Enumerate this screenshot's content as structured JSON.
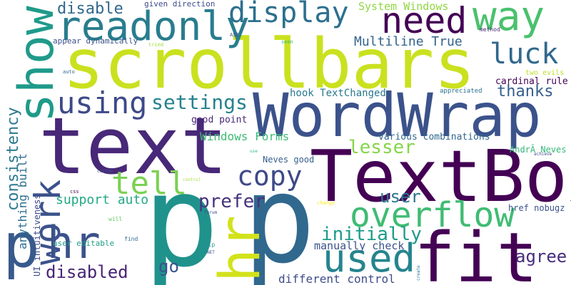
{
  "words": [
    {
      "text": "scrollbars",
      "color": "#cae11f"
    },
    {
      "text": "p",
      "color": "#20928c"
    },
    {
      "text": "p",
      "color": "#31688e"
    },
    {
      "text": "p",
      "color": "#375a8c"
    },
    {
      "text": "TextBox",
      "color": "#440154"
    },
    {
      "text": "text",
      "color": "#482878"
    },
    {
      "text": "WordWrap",
      "color": "#3b528b"
    },
    {
      "text": "fit",
      "color": "#440154"
    },
    {
      "text": "hr",
      "color": "#d2e21b"
    },
    {
      "text": "hr",
      "color": "#3b528b"
    },
    {
      "text": "show",
      "color": "#1f9a8a"
    },
    {
      "text": "readonly",
      "color": "#287d8e"
    },
    {
      "text": "need",
      "color": "#440154"
    },
    {
      "text": "way",
      "color": "#4ac16d"
    },
    {
      "text": "display",
      "color": "#2d708e"
    },
    {
      "text": "overflow",
      "color": "#3fbc73"
    },
    {
      "text": "copy",
      "color": "#3e4989"
    },
    {
      "text": "used",
      "color": "#25848e"
    },
    {
      "text": "luck",
      "color": "#31688e"
    },
    {
      "text": "using",
      "color": "#3e4989"
    },
    {
      "text": "work",
      "color": "#3b528b"
    },
    {
      "text": "tell",
      "color": "#7ad151"
    },
    {
      "text": "settings",
      "color": "#26828e"
    },
    {
      "text": "thanks",
      "color": "#355f8d"
    },
    {
      "text": "initially",
      "color": "#1e9b8a"
    },
    {
      "text": "consistency",
      "color": "#29798e"
    },
    {
      "text": "prefer",
      "color": "#46337e"
    },
    {
      "text": "disabled",
      "color": "#482475"
    },
    {
      "text": "agree",
      "color": "#472d7b"
    },
    {
      "text": "lesser",
      "color": "#86d549"
    },
    {
      "text": "disable",
      "color": "#31688e"
    },
    {
      "text": "user",
      "color": "#2a778e"
    },
    {
      "text": "go",
      "color": "#3b528b"
    },
    {
      "text": "support auto",
      "color": "#22a884"
    },
    {
      "text": "Windows Forms",
      "color": "#3dbc74"
    },
    {
      "text": "anything built",
      "color": "#2e6f8e"
    },
    {
      "text": "Multiline True",
      "color": "#33638d"
    },
    {
      "text": "System Windows",
      "color": "#90d743"
    },
    {
      "text": "manually check",
      "color": "#3b528b"
    },
    {
      "text": "different control",
      "color": "#3e4c8a"
    },
    {
      "text": "hook TextChanged",
      "color": "#2a788e"
    },
    {
      "text": "various combinations",
      "color": "#31688e"
    },
    {
      "text": "cardinal rule",
      "color": "#440154"
    },
    {
      "text": "good point",
      "color": "#482878"
    },
    {
      "text": "Neves good",
      "color": "#355f8d"
    },
    {
      "text": "user editable",
      "color": "#1f9e89"
    },
    {
      "text": "AndrÃ Neves",
      "color": "#35b779"
    },
    {
      "text": "href nobugz",
      "color": "#3b528b"
    },
    {
      "text": "UI intuitiveness",
      "color": "#3e4a89"
    },
    {
      "text": "appear dynamically",
      "color": "#3b528b"
    },
    {
      "text": "given direction",
      "color": "#3e4989"
    },
    {
      "text": "two evils",
      "color": "#bddf26"
    },
    {
      "text": "appreciated",
      "color": "#2c728e"
    },
    {
      "text": "method",
      "color": "#482878"
    },
    {
      "text": "ASP",
      "color": "#3b528b"
    },
    {
      "text": "tried",
      "color": "#a0da39"
    },
    {
      "text": "seen",
      "color": "#35b779"
    },
    {
      "text": "auto",
      "color": "#31688e"
    },
    {
      "text": "custom",
      "color": "#3b528b"
    },
    {
      "text": "achieve",
      "color": "#3e4989"
    },
    {
      "text": "control",
      "color": "#a5db36"
    },
    {
      "text": "css",
      "color": "#440154"
    },
    {
      "text": "forum",
      "color": "#3e4989"
    },
    {
      "text": "change",
      "color": "#fde725"
    },
    {
      "text": "will",
      "color": "#5ec962"
    },
    {
      "text": "find",
      "color": "#31688e"
    },
    {
      "text": "help",
      "color": "#21918c"
    },
    {
      "text": "NET",
      "color": "#3b528b"
    },
    {
      "text": "create",
      "color": "#2c728e"
    },
    {
      "text": "use",
      "color": "#35b779"
    }
  ]
}
